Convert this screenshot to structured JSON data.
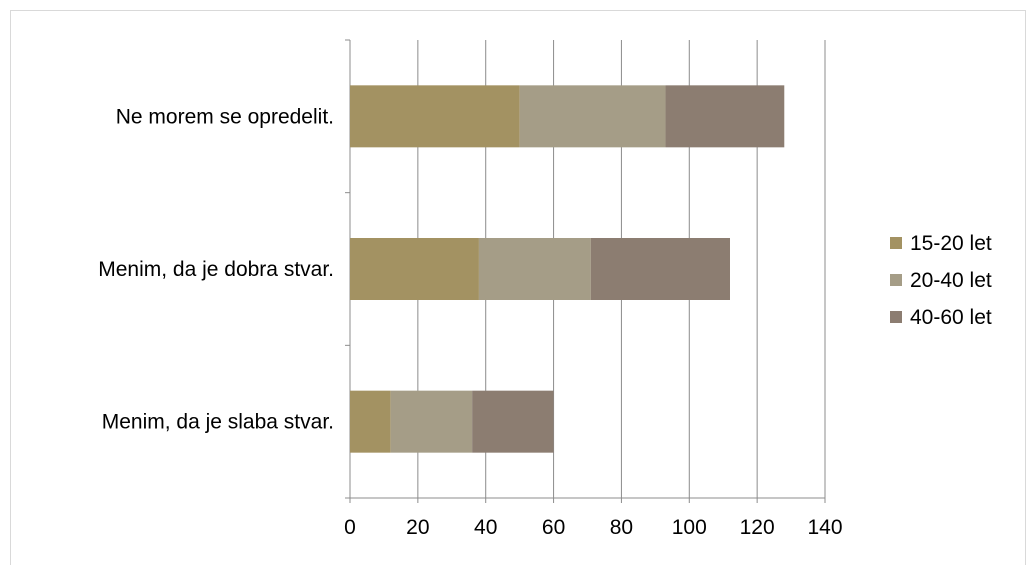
{
  "chart_data": {
    "type": "bar",
    "orientation": "horizontal",
    "stacked": true,
    "title": "",
    "xlabel": "",
    "ylabel": "",
    "categories": [
      "Ne morem se opredelit.",
      "Menim, da je dobra stvar.",
      "Menim, da je slaba stvar."
    ],
    "series": [
      {
        "name": "15-20 let",
        "color": "#a39262",
        "values": [
          50,
          38,
          12
        ]
      },
      {
        "name": "20-40 let",
        "color": "#a59d87",
        "values": [
          43,
          33,
          24
        ]
      },
      {
        "name": "40-60 let",
        "color": "#8c7d71",
        "values": [
          35,
          41,
          24
        ]
      }
    ],
    "xlim": [
      0,
      140
    ],
    "x_ticks": [
      "0",
      "20",
      "40",
      "60",
      "80",
      "100",
      "120",
      "140"
    ],
    "grid": true,
    "legend_position": "right"
  }
}
